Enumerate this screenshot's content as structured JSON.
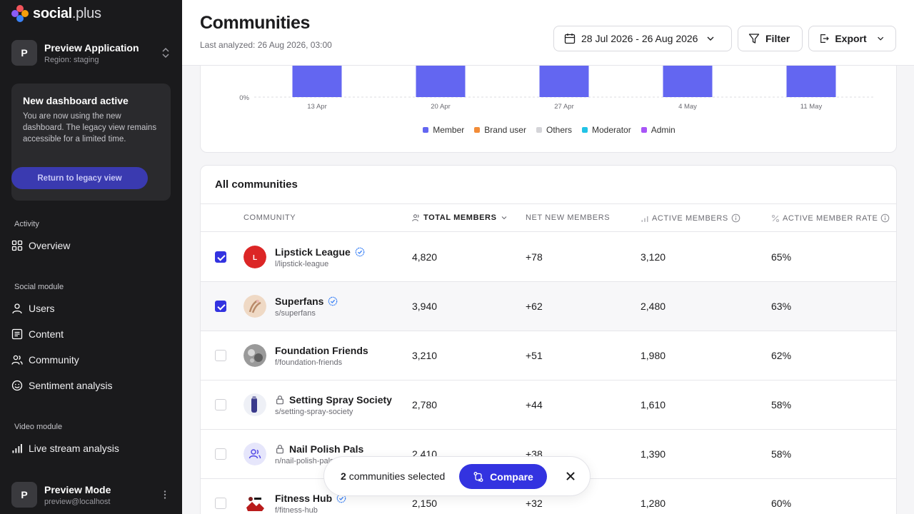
{
  "brand": {
    "name_a": "social",
    "name_b": ".plus"
  },
  "app": {
    "name": "Preview Application",
    "region": "Region: staging",
    "initial": "P"
  },
  "notice": {
    "title": "New dashboard active",
    "text": "You are now using the new dashboard. The legacy view remains accessible for a limited time.",
    "button": "Return to legacy view"
  },
  "nav": {
    "activity_label": "Activity",
    "overview": "Overview",
    "social_label": "Social module",
    "users": "Users",
    "content": "Content",
    "community": "Community",
    "sentiment": "Sentiment analysis",
    "video_label": "Video module",
    "livestream": "Live stream analysis"
  },
  "user": {
    "name": "Preview Mode",
    "email": "preview@localhost",
    "initial": "P"
  },
  "header": {
    "title": "Communities",
    "last_analyzed": "Last analyzed: 26 Aug 2026, 03:00",
    "date_range": "28 Jul 2026 - 26 Aug 2026",
    "filter": "Filter",
    "export": "Export"
  },
  "chart_data": {
    "type": "bar",
    "categories": [
      "13 Apr",
      "20 Apr",
      "27 Apr",
      "4 May",
      "11 May"
    ],
    "y_tick_visible": "0%",
    "series": [
      {
        "name": "Member",
        "color": "#6366f1"
      },
      {
        "name": "Brand user",
        "color": "#f28c38"
      },
      {
        "name": "Others",
        "color": "#d4d4d8"
      },
      {
        "name": "Moderator",
        "color": "#22c3e6"
      },
      {
        "name": "Admin",
        "color": "#a855f7"
      }
    ]
  },
  "table": {
    "title": "All communities",
    "headers": {
      "community": "COMMUNITY",
      "total": "TOTAL MEMBERS",
      "net_new": "NET NEW MEMBERS",
      "active": "ACTIVE MEMBERS",
      "rate": "ACTIVE MEMBER RATE"
    },
    "rows": [
      {
        "name": "Lipstick League",
        "slug": "l/lipstick-league",
        "total": "4,820",
        "net": "+78",
        "active": "3,120",
        "rate": "65%",
        "selected": true,
        "verified": true,
        "private": false,
        "initial": "L"
      },
      {
        "name": "Superfans",
        "slug": "s/superfans",
        "total": "3,940",
        "net": "+62",
        "active": "2,480",
        "rate": "63%",
        "selected": true,
        "verified": true,
        "private": false
      },
      {
        "name": "Foundation Friends",
        "slug": "f/foundation-friends",
        "total": "3,210",
        "net": "+51",
        "active": "1,980",
        "rate": "62%",
        "selected": false,
        "verified": false,
        "private": false
      },
      {
        "name": "Setting Spray Society",
        "slug": "s/setting-spray-society",
        "total": "2,780",
        "net": "+44",
        "active": "1,610",
        "rate": "58%",
        "selected": false,
        "verified": false,
        "private": true
      },
      {
        "name": "Nail Polish Pals",
        "slug": "n/nail-polish-pals",
        "total": "2,410",
        "net": "+38",
        "active": "1,390",
        "rate": "58%",
        "selected": false,
        "verified": false,
        "private": true
      },
      {
        "name": "Fitness Hub",
        "slug": "f/fitness-hub",
        "total": "2,150",
        "net": "+32",
        "active": "1,280",
        "rate": "60%",
        "selected": false,
        "verified": true,
        "private": false
      }
    ]
  },
  "selection": {
    "count": "2",
    "text": "communities selected",
    "compare": "Compare"
  }
}
